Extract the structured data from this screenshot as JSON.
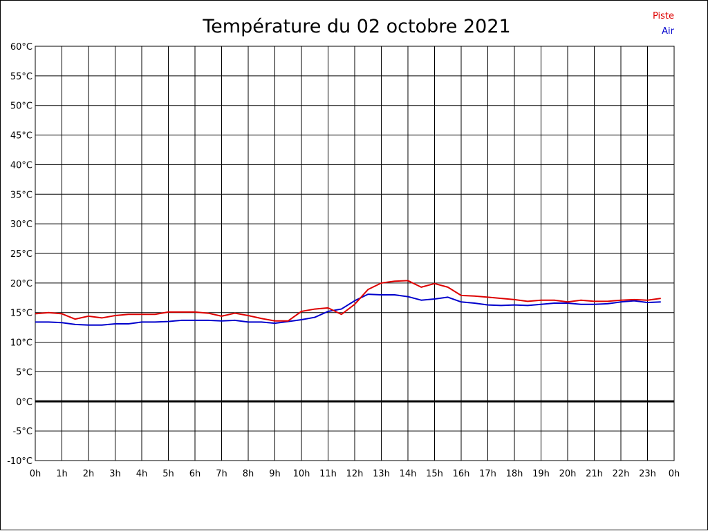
{
  "colors": {
    "piste": "#dd0000",
    "air": "#0000cc",
    "grid": "#000000",
    "zero_line": "#000000"
  },
  "chart_data": {
    "type": "line",
    "title": "Température du 02 octobre 2021",
    "xlabel": "",
    "ylabel": "",
    "ylim": [
      -10,
      60
    ],
    "xlim": [
      0,
      24
    ],
    "grid": true,
    "legend_position": "top-right",
    "y_ticks": [
      -10,
      -5,
      0,
      5,
      10,
      15,
      20,
      25,
      30,
      35,
      40,
      45,
      50,
      55,
      60
    ],
    "y_tick_labels": [
      "-10°C",
      "-5°C",
      "0°C",
      "5°C",
      "10°C",
      "15°C",
      "20°C",
      "25°C",
      "30°C",
      "35°C",
      "40°C",
      "45°C",
      "50°C",
      "55°C",
      "60°C"
    ],
    "x_ticks": [
      0,
      1,
      2,
      3,
      4,
      5,
      6,
      7,
      8,
      9,
      10,
      11,
      12,
      13,
      14,
      15,
      16,
      17,
      18,
      19,
      20,
      21,
      22,
      23,
      24
    ],
    "x_tick_labels": [
      "0h",
      "1h",
      "2h",
      "3h",
      "4h",
      "5h",
      "6h",
      "7h",
      "8h",
      "9h",
      "10h",
      "11h",
      "12h",
      "13h",
      "14h",
      "15h",
      "16h",
      "17h",
      "18h",
      "19h",
      "20h",
      "21h",
      "22h",
      "23h",
      "0h"
    ],
    "x": [
      0,
      0.5,
      1,
      1.5,
      2,
      2.5,
      3,
      3.5,
      4,
      4.5,
      5,
      5.5,
      6,
      6.5,
      7,
      7.5,
      8,
      8.5,
      9,
      9.5,
      10,
      10.5,
      11,
      11.5,
      12,
      12.5,
      13,
      13.5,
      14,
      14.5,
      15,
      15.5,
      16,
      16.5,
      17,
      17.5,
      18,
      18.5,
      19,
      19.5,
      20,
      20.5,
      21,
      21.5,
      22,
      22.5,
      23,
      23.5
    ],
    "series": [
      {
        "name": "Piste",
        "color": "#dd0000",
        "values": [
          14.8,
          15.0,
          14.8,
          13.9,
          14.4,
          14.1,
          14.5,
          14.7,
          14.7,
          14.7,
          15.1,
          15.1,
          15.1,
          14.9,
          14.4,
          14.9,
          14.5,
          14.0,
          13.6,
          13.6,
          15.2,
          15.6,
          15.8,
          14.7,
          16.4,
          18.9,
          20.0,
          20.3,
          20.4,
          19.3,
          19.9,
          19.3,
          17.9,
          17.8,
          17.6,
          17.4,
          17.2,
          16.9,
          17.1,
          17.1,
          16.8,
          17.1,
          16.9,
          16.9,
          17.1,
          17.2,
          17.1,
          17.4
        ]
      },
      {
        "name": "Air",
        "color": "#0000cc",
        "values": [
          13.4,
          13.4,
          13.3,
          13.0,
          12.9,
          12.9,
          13.1,
          13.1,
          13.4,
          13.4,
          13.5,
          13.7,
          13.7,
          13.7,
          13.6,
          13.7,
          13.4,
          13.4,
          13.2,
          13.5,
          13.8,
          14.2,
          15.2,
          15.6,
          17.0,
          18.1,
          18.0,
          18.0,
          17.7,
          17.1,
          17.3,
          17.6,
          16.8,
          16.6,
          16.3,
          16.2,
          16.3,
          16.2,
          16.4,
          16.6,
          16.6,
          16.4,
          16.4,
          16.5,
          16.8,
          17.0,
          16.7,
          16.8
        ]
      }
    ]
  }
}
